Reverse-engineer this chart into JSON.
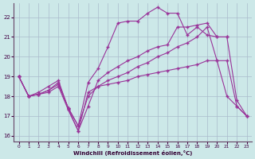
{
  "xlabel": "Windchill (Refroidissement éolien,°C)",
  "background_color": "#cce8e8",
  "grid_color": "#aabbcc",
  "line_color": "#993399",
  "xlim": [
    -0.5,
    23.5
  ],
  "ylim": [
    15.7,
    22.7
  ],
  "yticks": [
    16,
    17,
    18,
    19,
    20,
    21,
    22
  ],
  "xticks": [
    0,
    1,
    2,
    3,
    4,
    5,
    6,
    7,
    8,
    9,
    10,
    11,
    12,
    13,
    14,
    15,
    16,
    17,
    18,
    19,
    20,
    21,
    22,
    23
  ],
  "line1_x": [
    0,
    1,
    2,
    3,
    4,
    5,
    6,
    7,
    8,
    9,
    10,
    11,
    12,
    13,
    14,
    15,
    16,
    17,
    18,
    19,
    20,
    21
  ],
  "line1_y": [
    19.0,
    18.0,
    18.1,
    18.3,
    18.7,
    17.4,
    16.5,
    18.7,
    19.4,
    20.5,
    21.7,
    21.8,
    21.8,
    22.2,
    22.5,
    22.2,
    22.2,
    21.1,
    21.5,
    21.1,
    21.0,
    21.0
  ],
  "line2_x": [
    0,
    1,
    2,
    3,
    4,
    5,
    6,
    7,
    8,
    9,
    10,
    11,
    12,
    13,
    14,
    15,
    16,
    17,
    18,
    19,
    20,
    21,
    22,
    23
  ],
  "line2_y": [
    19.0,
    18.0,
    18.2,
    18.5,
    18.8,
    17.35,
    16.25,
    17.5,
    18.8,
    19.2,
    19.5,
    19.8,
    20.0,
    20.3,
    20.5,
    20.6,
    21.5,
    21.5,
    21.6,
    21.7,
    21.0,
    21.0,
    17.8,
    17.0
  ],
  "line3_x": [
    0,
    1,
    2,
    3,
    4,
    5,
    6,
    7,
    8,
    9,
    10,
    11,
    12,
    13,
    14,
    15,
    16,
    17,
    18,
    19,
    20,
    21,
    22,
    23
  ],
  "line3_y": [
    19.0,
    18.0,
    18.1,
    18.3,
    18.6,
    17.4,
    16.5,
    18.0,
    18.5,
    18.8,
    19.0,
    19.2,
    19.5,
    19.7,
    20.0,
    20.2,
    20.5,
    20.7,
    21.0,
    21.5,
    19.8,
    18.0,
    17.5,
    17.0
  ],
  "line4_x": [
    0,
    1,
    2,
    3,
    4,
    5,
    6,
    7,
    8,
    9,
    10,
    11,
    12,
    13,
    14,
    15,
    16,
    17,
    18,
    19,
    20,
    21,
    22,
    23
  ],
  "line4_y": [
    19.0,
    18.0,
    18.1,
    18.2,
    18.5,
    17.3,
    16.25,
    18.2,
    18.5,
    18.6,
    18.7,
    18.8,
    19.0,
    19.1,
    19.2,
    19.3,
    19.4,
    19.5,
    19.6,
    19.8,
    19.8,
    19.8,
    17.5,
    17.0
  ]
}
